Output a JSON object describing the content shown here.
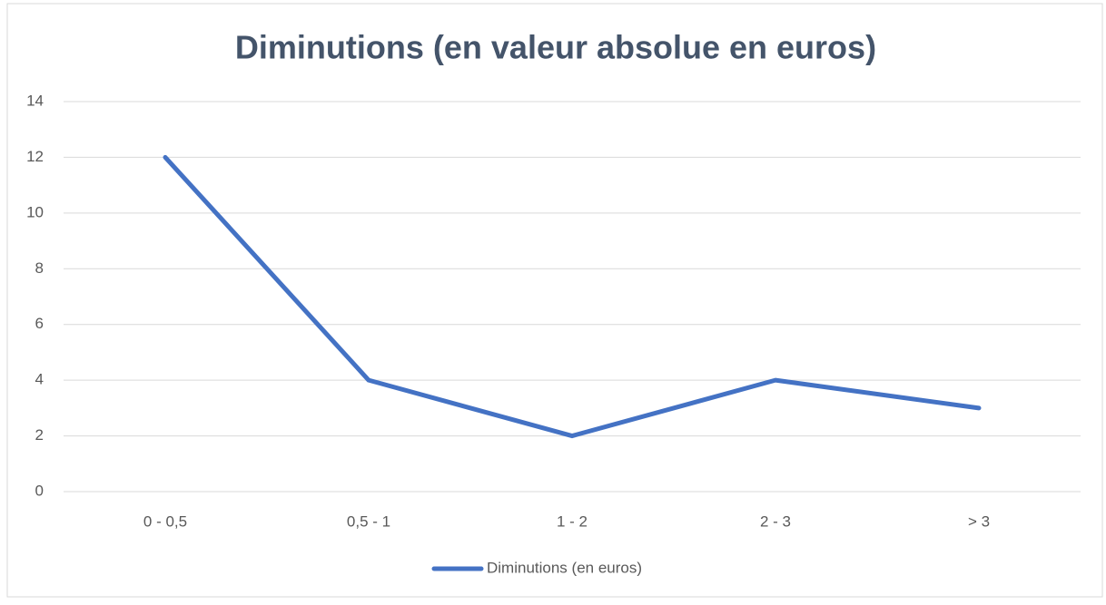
{
  "chart_data": {
    "type": "line",
    "title": "Diminutions (en valeur absolue en euros)",
    "categories": [
      "0 - 0,5",
      "0,5 - 1",
      "1 - 2",
      "2 - 3",
      "> 3"
    ],
    "series": [
      {
        "name": "Diminutions (en euros)",
        "color": "#4472c4",
        "values": [
          12,
          4,
          2,
          4,
          3
        ]
      }
    ],
    "ylim": [
      0,
      14
    ],
    "yticks": [
      0,
      2,
      4,
      6,
      8,
      10,
      12,
      14
    ],
    "grid": true,
    "legend": "bottom"
  }
}
